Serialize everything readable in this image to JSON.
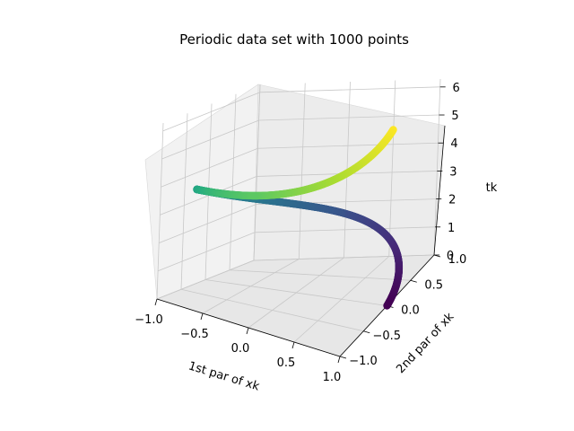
{
  "chart_data": {
    "type": "scatter",
    "projection": "3d",
    "title": "Periodic data set with 1000 points",
    "xlabel": "1st par of xk",
    "ylabel": "2nd par of xk",
    "zlabel": "tk",
    "xlim": [
      -1.0,
      1.0
    ],
    "ylim": [
      -1.0,
      1.0
    ],
    "zlim": [
      0,
      6.283
    ],
    "x_ticks": [
      "−1.0",
      "−0.5",
      "0.0",
      "0.5",
      "1.0"
    ],
    "y_ticks": [
      "−1.0",
      "−0.5",
      "0.0",
      "0.5",
      "1.0"
    ],
    "z_ticks": [
      "0",
      "1",
      "2",
      "3",
      "4",
      "5",
      "6"
    ],
    "grid": true,
    "colormap": "viridis",
    "series": [
      {
        "point_count": 1000,
        "x_expr": "cos(t)",
        "y_expr": "sin(t)",
        "z_expr": "t",
        "t_range": [
          0,
          6.283
        ],
        "color_by": "z"
      }
    ]
  }
}
